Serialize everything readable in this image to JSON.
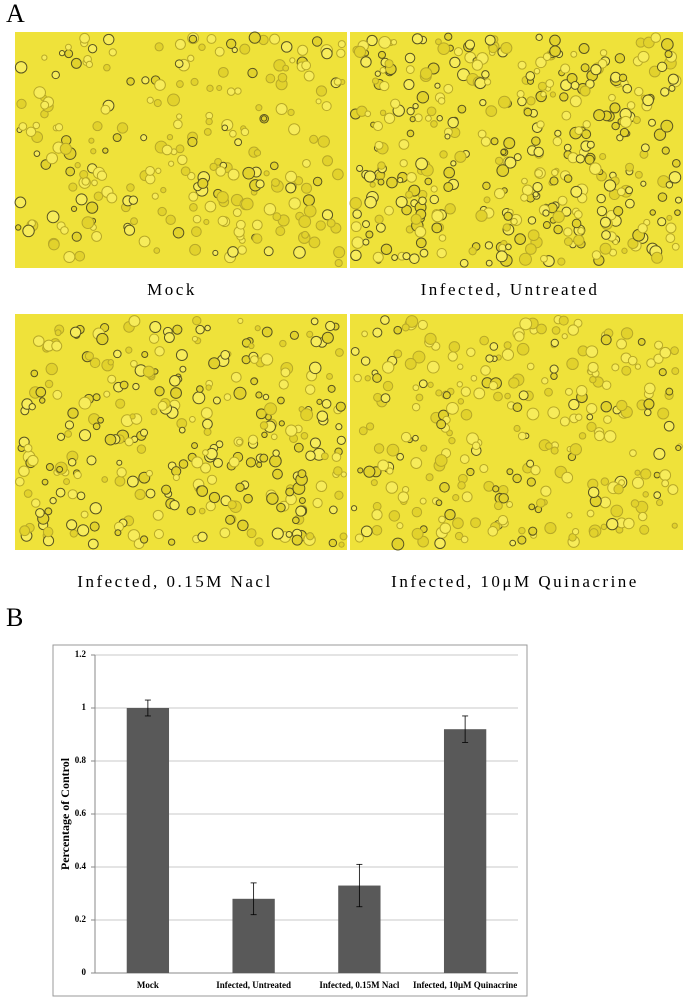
{
  "panel_a": {
    "label": "A",
    "captions": [
      "Mock",
      "Infected, Untreated",
      "Infected, 0.15M Nacl",
      "Infected, 10μM Quinacrine"
    ]
  },
  "chart_data": {
    "type": "bar",
    "panel_label": "B",
    "ylabel": "Percentage of Control",
    "categories": [
      "Mock",
      "Infected, Untreated",
      "Infected, 0.15M Nacl",
      "Infected, 10μM Quinacrine"
    ],
    "values": [
      1.0,
      0.28,
      0.33,
      0.92
    ],
    "errors": [
      0.03,
      0.06,
      0.08,
      0.05
    ],
    "color": "#595959",
    "ylim": [
      0,
      1.2
    ],
    "yticks": [
      0,
      0.2,
      0.4,
      0.6,
      0.8,
      1,
      1.2
    ],
    "grid": true
  }
}
